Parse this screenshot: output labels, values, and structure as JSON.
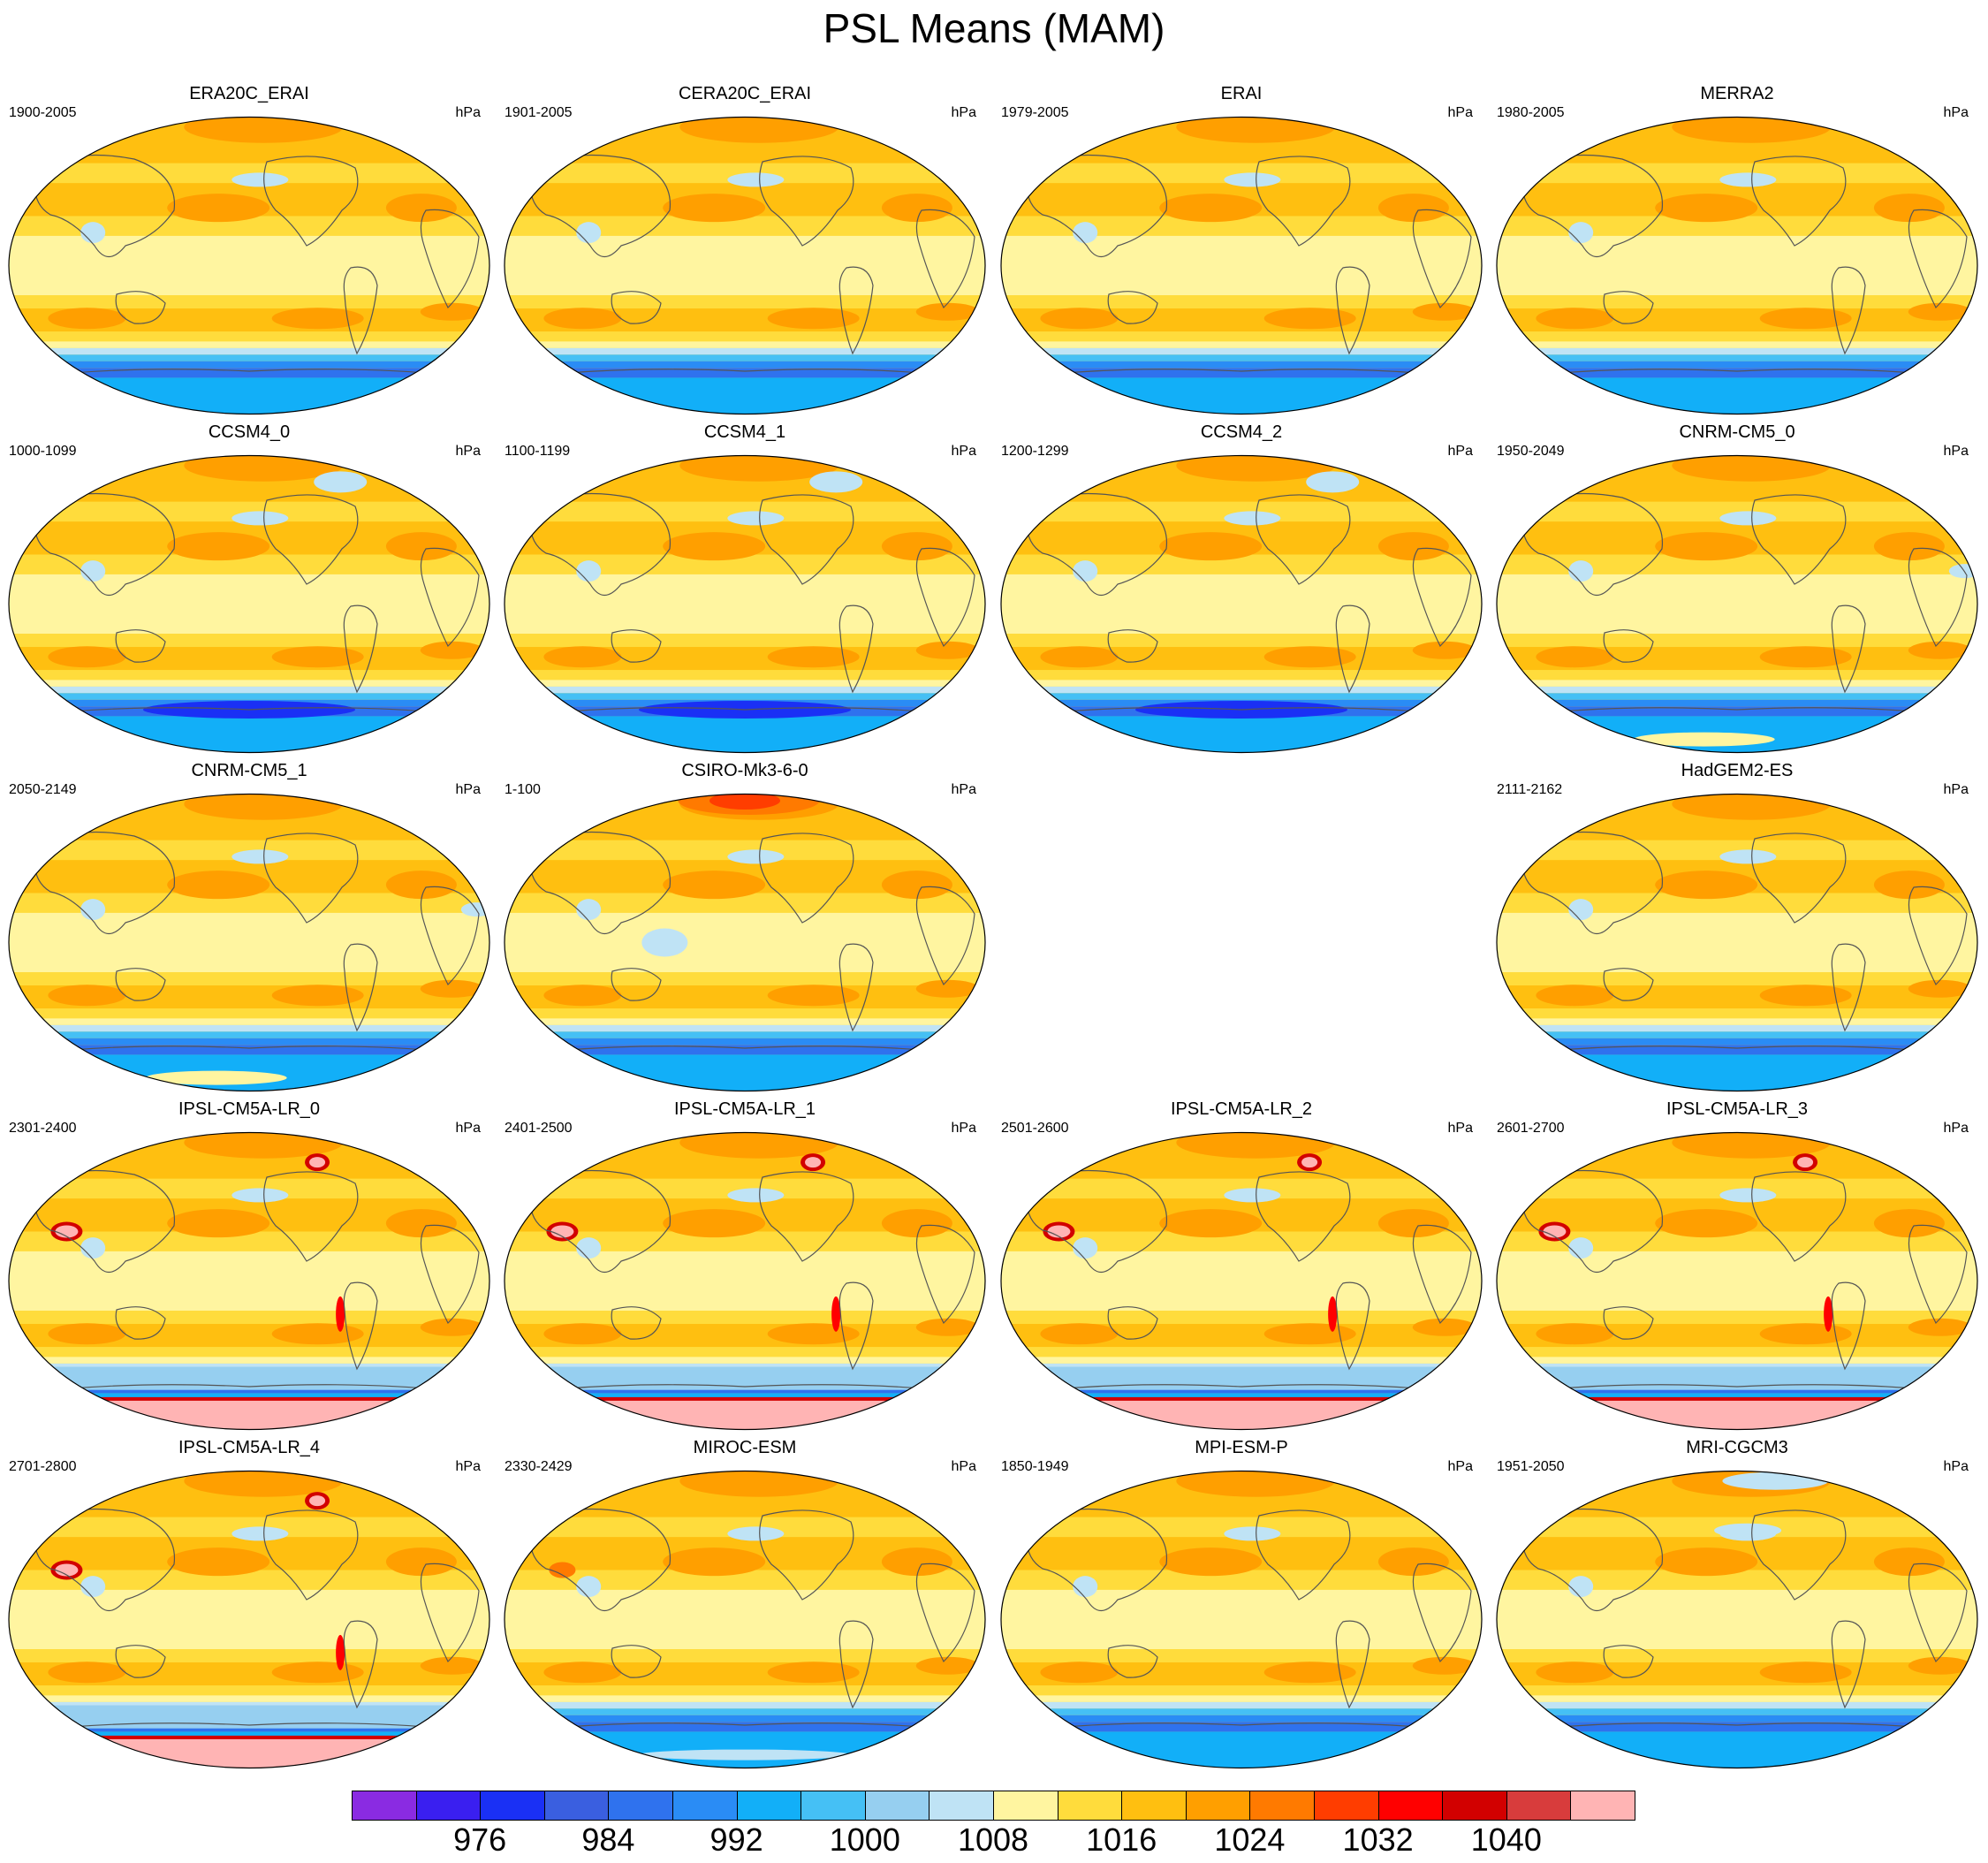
{
  "title": "PSL Means (MAM)",
  "units_label": "hPa",
  "panels": [
    {
      "name": "ERA20C_ERAI",
      "years": "1900-2005",
      "row": 0,
      "col": 0,
      "variant": "reanalysis"
    },
    {
      "name": "CERA20C_ERAI",
      "years": "1901-2005",
      "row": 0,
      "col": 1,
      "variant": "reanalysis"
    },
    {
      "name": "ERAI",
      "years": "1979-2005",
      "row": 0,
      "col": 2,
      "variant": "reanalysis"
    },
    {
      "name": "MERRA2",
      "years": "1980-2005",
      "row": 0,
      "col": 3,
      "variant": "reanalysis"
    },
    {
      "name": "CCSM4_0",
      "years": "1000-1099",
      "row": 1,
      "col": 0,
      "variant": "ccsm"
    },
    {
      "name": "CCSM4_1",
      "years": "1100-1199",
      "row": 1,
      "col": 1,
      "variant": "ccsm"
    },
    {
      "name": "CCSM4_2",
      "years": "1200-1299",
      "row": 1,
      "col": 2,
      "variant": "ccsm"
    },
    {
      "name": "CNRM-CM5_0",
      "years": "1950-2049",
      "row": 1,
      "col": 3,
      "variant": "cnrm"
    },
    {
      "name": "CNRM-CM5_1",
      "years": "2050-2149",
      "row": 2,
      "col": 0,
      "variant": "cnrm"
    },
    {
      "name": "CSIRO-Mk3-6-0",
      "years": "1-100",
      "row": 2,
      "col": 1,
      "variant": "csiro"
    },
    {
      "name": "HadGEM2-ES",
      "years": "2111-2162",
      "row": 2,
      "col": 3,
      "variant": "reanalysis"
    },
    {
      "name": "IPSL-CM5A-LR_0",
      "years": "2301-2400",
      "row": 3,
      "col": 0,
      "variant": "ipsl"
    },
    {
      "name": "IPSL-CM5A-LR_1",
      "years": "2401-2500",
      "row": 3,
      "col": 1,
      "variant": "ipsl"
    },
    {
      "name": "IPSL-CM5A-LR_2",
      "years": "2501-2600",
      "row": 3,
      "col": 2,
      "variant": "ipsl"
    },
    {
      "name": "IPSL-CM5A-LR_3",
      "years": "2601-2700",
      "row": 3,
      "col": 3,
      "variant": "ipsl"
    },
    {
      "name": "IPSL-CM5A-LR_4",
      "years": "2701-2800",
      "row": 4,
      "col": 0,
      "variant": "ipsl"
    },
    {
      "name": "MIROC-ESM",
      "years": "2330-2429",
      "row": 4,
      "col": 1,
      "variant": "miroc"
    },
    {
      "name": "MPI-ESM-P",
      "years": "1850-1949",
      "row": 4,
      "col": 2,
      "variant": "reanalysis"
    },
    {
      "name": "MRI-CGCM3",
      "years": "1951-2050",
      "row": 4,
      "col": 3,
      "variant": "mri"
    }
  ],
  "colorbar": {
    "colors": [
      "#8a2be2",
      "#3a1ff0",
      "#1a30f5",
      "#3a5fe0",
      "#2f72ee",
      "#2a8cf5",
      "#12aff8",
      "#45c0f5",
      "#96cff0",
      "#bfe3f5",
      "#fff5a0",
      "#ffdc3c",
      "#ffbf10",
      "#ff9f00",
      "#ff7a00",
      "#ff3d00",
      "#ff0000",
      "#d20000",
      "#d83c3c",
      "#ffb4b4"
    ],
    "tick_labels": [
      "976",
      "984",
      "992",
      "1000",
      "1008",
      "1016",
      "1024",
      "1032",
      "1040"
    ]
  }
}
